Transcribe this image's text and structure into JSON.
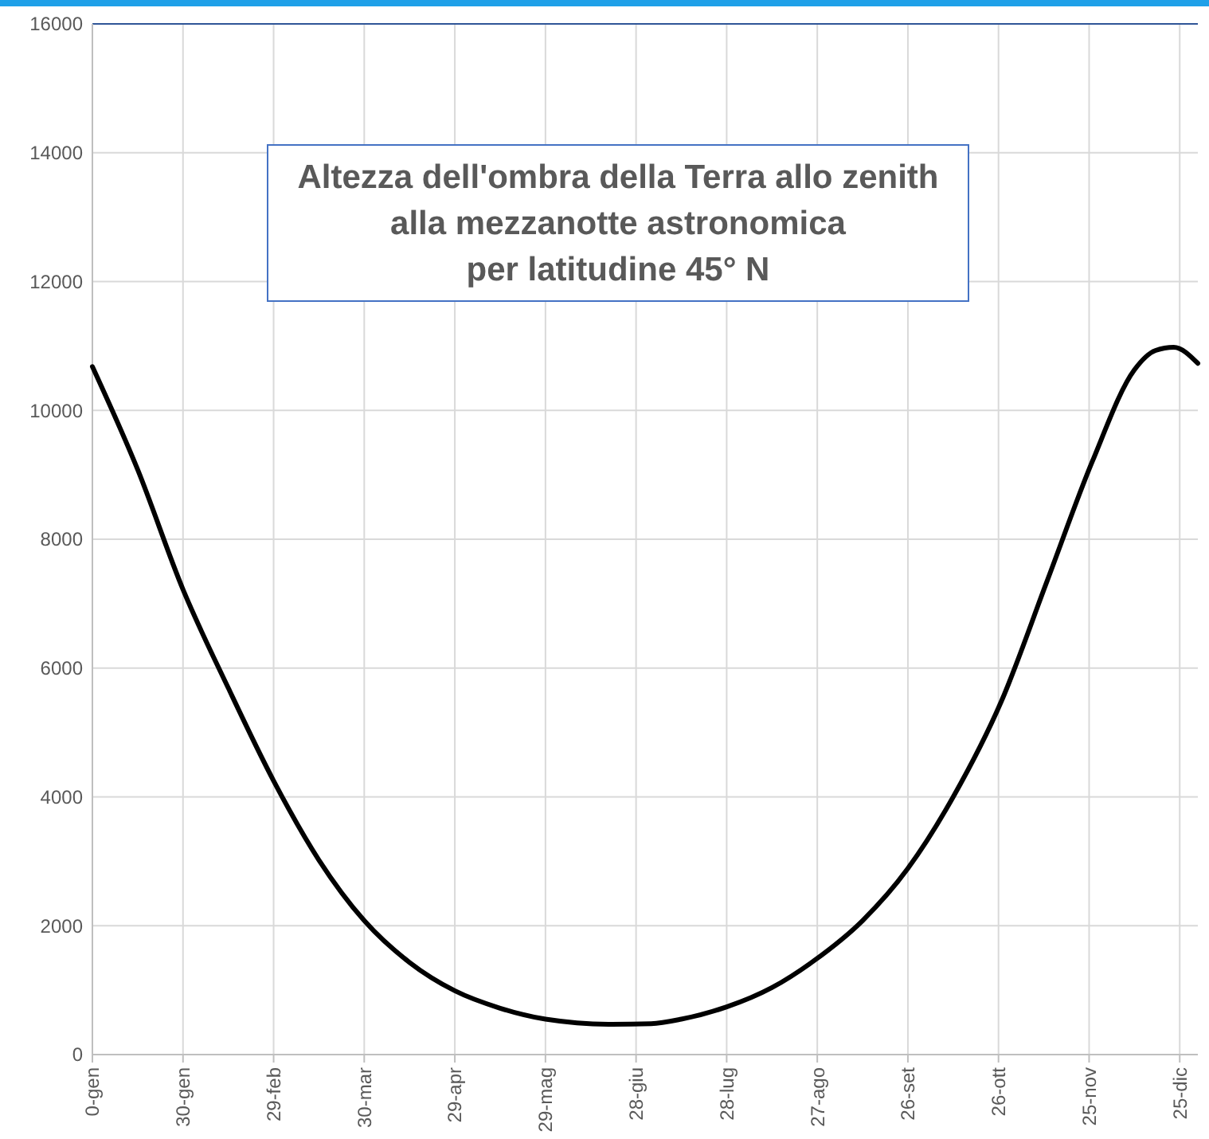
{
  "chart_data": {
    "type": "line",
    "title": "Altezza dell'ombra della Terra allo zenith\nalla mezzanotte astronomica\nper latitudine 45° N",
    "x": [
      "1999-12-31",
      "2000-01-15",
      "2000-01-30",
      "2000-02-14",
      "2000-02-29",
      "2000-03-15",
      "2000-03-30",
      "2000-04-14",
      "2000-04-29",
      "2000-05-14",
      "2000-05-29",
      "2000-06-20",
      "2000-07-03",
      "2000-07-13",
      "2000-07-28",
      "2000-08-12",
      "2000-08-26",
      "2000-09-11",
      "2000-09-26",
      "2000-10-11",
      "2000-10-27",
      "2000-11-11",
      "2000-11-26",
      "2000-12-10",
      "2000-12-17",
      "2000-12-23",
      "2000-12-31"
    ],
    "series": [
      {
        "color": "#000000",
        "values": [
          10680,
          9080,
          7220,
          5690,
          4250,
          3020,
          2080,
          1430,
          990,
          720,
          550,
          470,
          480,
          550,
          740,
          1040,
          1460,
          2080,
          2890,
          4000,
          5490,
          7340,
          9200,
          10630,
          10930,
          10980,
          10730
        ]
      }
    ],
    "xlim": [
      "1999-12-31",
      "2000-12-31"
    ],
    "ylim": [
      0,
      16000
    ],
    "xticks": [
      {
        "value": "1999-12-31",
        "label": "0-gen"
      },
      {
        "value": "2000-01-30",
        "label": "30-gen"
      },
      {
        "value": "2000-02-29",
        "label": "29-feb"
      },
      {
        "value": "2000-03-30",
        "label": "30-mar"
      },
      {
        "value": "2000-04-29",
        "label": "29-apr"
      },
      {
        "value": "2000-05-29",
        "label": "29-mag"
      },
      {
        "value": "2000-06-28",
        "label": "28-giu"
      },
      {
        "value": "2000-07-28",
        "label": "28-lug"
      },
      {
        "value": "2000-08-27",
        "label": "27-ago"
      },
      {
        "value": "2000-09-26",
        "label": "26-set"
      },
      {
        "value": "2000-10-26",
        "label": "26-ott"
      },
      {
        "value": "2000-11-25",
        "label": "25-nov"
      },
      {
        "value": "2000-12-25",
        "label": "25-dic"
      }
    ],
    "yticks": [
      0,
      2000,
      4000,
      6000,
      8000,
      10000,
      12000,
      14000,
      16000
    ],
    "grid": true,
    "marker": "none",
    "line_style": "solid"
  }
}
